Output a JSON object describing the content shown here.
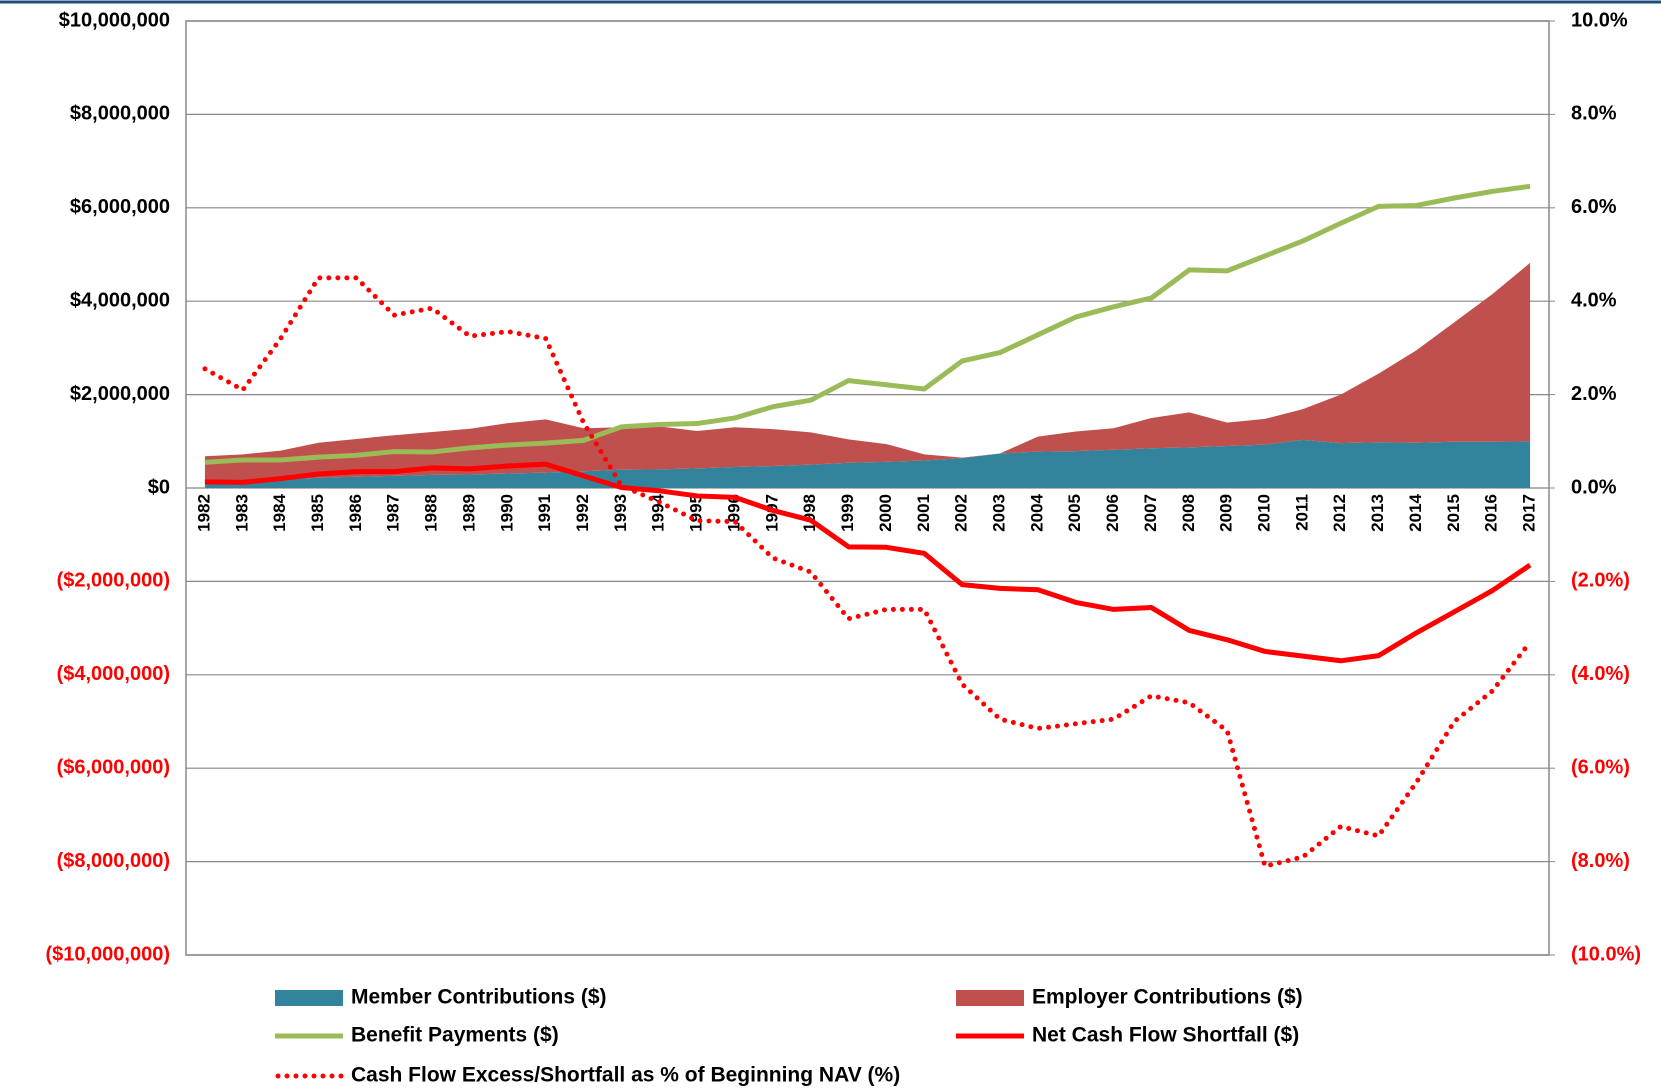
{
  "chart_data": {
    "type": "area",
    "categories": [
      "1982",
      "1983",
      "1984",
      "1985",
      "1986",
      "1987",
      "1988",
      "1989",
      "1990",
      "1991",
      "1992",
      "1993",
      "1994",
      "1995",
      "1996",
      "1997",
      "1998",
      "1999",
      "2000",
      "2001",
      "2002",
      "2003",
      "2004",
      "2005",
      "2006",
      "2007",
      "2008",
      "2009",
      "2010",
      "2011",
      "2012",
      "2013",
      "2014",
      "2015",
      "2016",
      "2017"
    ],
    "series": [
      {
        "name": "Member Contributions ($)",
        "type": "area",
        "color": "#31849b",
        "values": [
          150000,
          150000,
          180000,
          220000,
          240000,
          260000,
          280000,
          290000,
          310000,
          330000,
          360000,
          390000,
          400000,
          420000,
          450000,
          470000,
          500000,
          540000,
          560000,
          590000,
          640000,
          740000,
          780000,
          790000,
          820000,
          850000,
          870000,
          900000,
          930000,
          1030000,
          960000,
          980000,
          970000,
          990000,
          990000,
          1000000
        ]
      },
      {
        "name": "Employer Contributions ($)",
        "type": "area",
        "color": "#c0504d",
        "values": [
          530000,
          570000,
          620000,
          750000,
          810000,
          870000,
          920000,
          980000,
          1080000,
          1140000,
          920000,
          910000,
          920000,
          800000,
          850000,
          790000,
          690000,
          500000,
          380000,
          130000,
          10000,
          0,
          320000,
          420000,
          460000,
          650000,
          750000,
          500000,
          550000,
          660000,
          1040000,
          1470000,
          1980000,
          2560000,
          3160000,
          3820000
        ]
      },
      {
        "name": "Benefit Payments ($)",
        "type": "line",
        "color": "#9bbb59",
        "values": [
          550000,
          600000,
          600000,
          660000,
          700000,
          780000,
          770000,
          860000,
          920000,
          960000,
          1020000,
          1310000,
          1360000,
          1380000,
          1500000,
          1740000,
          1880000,
          2300000,
          2210000,
          2120000,
          2720000,
          2900000,
          3280000,
          3660000,
          3880000,
          4070000,
          4670000,
          4650000,
          4970000,
          5290000,
          5670000,
          6030000,
          6050000,
          6210000,
          6350000,
          6460000
        ]
      },
      {
        "name": "Net Cash Flow Shortfall ($)",
        "type": "line",
        "color": "#ff0000",
        "values": [
          130000,
          120000,
          200000,
          300000,
          350000,
          350000,
          430000,
          410000,
          470000,
          510000,
          260000,
          10000,
          -60000,
          -170000,
          -200000,
          -480000,
          -690000,
          -1260000,
          -1270000,
          -1400000,
          -2070000,
          -2150000,
          -2180000,
          -2450000,
          -2600000,
          -2560000,
          -3050000,
          -3250000,
          -3500000,
          -3600000,
          -3700000,
          -3590000,
          -3100000,
          -2650000,
          -2200000,
          -1650000
        ]
      },
      {
        "name": "Cash Flow Excess/Shortfall as % of Beginning NAV (%)",
        "type": "dotted",
        "color": "#ff0000",
        "axis": "y2",
        "values": [
          2.55,
          2.1,
          3.2,
          4.5,
          4.5,
          3.7,
          3.85,
          3.25,
          3.35,
          3.2,
          1.4,
          0.05,
          -0.3,
          -0.7,
          -0.72,
          -1.5,
          -1.8,
          -2.8,
          -2.6,
          -2.6,
          -4.2,
          -4.95,
          -5.15,
          -5.05,
          -4.95,
          -4.45,
          -4.6,
          -5.2,
          -8.1,
          -7.9,
          -7.25,
          -7.45,
          -6.3,
          -5.0,
          -4.35,
          -3.3
        ]
      }
    ],
    "ylim": [
      -10000000,
      10000000
    ],
    "yticks": [
      {
        "value": 10000000,
        "label": "$10,000,000"
      },
      {
        "value": 8000000,
        "label": "$8,000,000"
      },
      {
        "value": 6000000,
        "label": "$6,000,000"
      },
      {
        "value": 4000000,
        "label": "$4,000,000"
      },
      {
        "value": 2000000,
        "label": "$2,000,000"
      },
      {
        "value": 0,
        "label": "$0"
      },
      {
        "value": -2000000,
        "label": "($2,000,000)"
      },
      {
        "value": -4000000,
        "label": "($4,000,000)"
      },
      {
        "value": -6000000,
        "label": "($6,000,000)"
      },
      {
        "value": -8000000,
        "label": "($8,000,000)"
      },
      {
        "value": -10000000,
        "label": "($10,000,000)"
      }
    ],
    "y2lim": [
      -10,
      10
    ],
    "y2ticks": [
      {
        "value": 10,
        "label": "10.0%"
      },
      {
        "value": 8,
        "label": "8.0%"
      },
      {
        "value": 6,
        "label": "6.0%"
      },
      {
        "value": 4,
        "label": "4.0%"
      },
      {
        "value": 2,
        "label": "2.0%"
      },
      {
        "value": 0,
        "label": "0.0%"
      },
      {
        "value": -2,
        "label": "(2.0%)"
      },
      {
        "value": -4,
        "label": "(4.0%)"
      },
      {
        "value": -6,
        "label": "(6.0%)"
      },
      {
        "value": -8,
        "label": "(8.0%)"
      },
      {
        "value": -10,
        "label": "(10.0%)"
      }
    ],
    "grid": true,
    "legend": "bottom"
  }
}
